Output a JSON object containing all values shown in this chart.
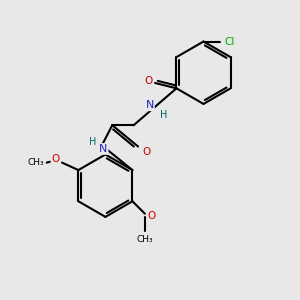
{
  "background_color": "#e8e8e8",
  "bond_color": "#000000",
  "atom_colors": {
    "C": "#000000",
    "N": "#2222cc",
    "O": "#cc0000",
    "Cl": "#00aa00",
    "H": "#006666"
  },
  "figure_size": [
    3.0,
    3.0
  ],
  "dpi": 100,
  "xlim": [
    0,
    10
  ],
  "ylim": [
    0,
    10
  ]
}
